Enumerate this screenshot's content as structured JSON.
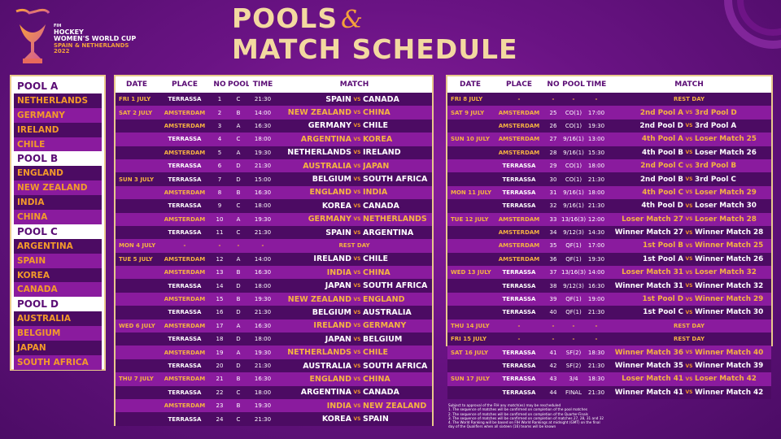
{
  "logo": {
    "line1": "FIH",
    "line2": "HOCKEY",
    "line3": "WOMEN'S WORLD CUP",
    "line4": "SPAIN & NETHERLANDS 2022"
  },
  "title": {
    "line1": "POOLS",
    "amp": "&",
    "line2": "MATCH SCHEDULE"
  },
  "pools": [
    {
      "name": "POOL A",
      "teams": [
        "NETHERLANDS",
        "GERMANY",
        "IRELAND",
        "CHILE"
      ]
    },
    {
      "name": "POOL B",
      "teams": [
        "ENGLAND",
        "NEW ZEALAND",
        "INDIA",
        "CHINA"
      ]
    },
    {
      "name": "POOL C",
      "teams": [
        "ARGENTINA",
        "SPAIN",
        "KOREA",
        "CANADA"
      ]
    },
    {
      "name": "POOL D",
      "teams": [
        "AUSTRALIA",
        "BELGIUM",
        "JAPAN",
        "SOUTH AFRICA"
      ]
    }
  ],
  "headers": {
    "date": "DATE",
    "place": "PLACE",
    "no": "NO",
    "pool": "POOL",
    "time": "TIME",
    "match": "MATCH"
  },
  "vs": "VS",
  "left_rows": [
    {
      "date": "FRI 1 JULY",
      "place": "TERRASSA",
      "no": "1",
      "pool": "C",
      "time": "21:30",
      "home": "SPAIN",
      "away": "CANADA"
    },
    {
      "date": "SAT 2 JULY",
      "place": "AMSTERDAM",
      "no": "2",
      "pool": "B",
      "time": "14:00",
      "home": "NEW ZEALAND",
      "away": "CHINA"
    },
    {
      "date": "",
      "place": "AMSTERDAM",
      "no": "3",
      "pool": "A",
      "time": "16:30",
      "home": "GERMANY",
      "away": "CHILE"
    },
    {
      "date": "",
      "place": "TERRASSA",
      "no": "4",
      "pool": "C",
      "time": "18:00",
      "home": "ARGENTINA",
      "away": "KOREA"
    },
    {
      "date": "",
      "place": "AMSTERDAM",
      "no": "5",
      "pool": "A",
      "time": "19:30",
      "home": "NETHERLANDS",
      "away": "IRELAND"
    },
    {
      "date": "",
      "place": "TERRASSA",
      "no": "6",
      "pool": "D",
      "time": "21:30",
      "home": "AUSTRALIA",
      "away": "JAPAN"
    },
    {
      "date": "SUN 3 JULY",
      "place": "TERRASSA",
      "no": "7",
      "pool": "D",
      "time": "15:00",
      "home": "BELGIUM",
      "away": "SOUTH AFRICA"
    },
    {
      "date": "",
      "place": "AMSTERDAM",
      "no": "8",
      "pool": "B",
      "time": "16:30",
      "home": "ENGLAND",
      "away": "INDIA"
    },
    {
      "date": "",
      "place": "TERRASSA",
      "no": "9",
      "pool": "C",
      "time": "18:00",
      "home": "KOREA",
      "away": "CANADA"
    },
    {
      "date": "",
      "place": "AMSTERDAM",
      "no": "10",
      "pool": "A",
      "time": "19:30",
      "home": "GERMANY",
      "away": "NETHERLANDS"
    },
    {
      "date": "",
      "place": "TERRASSA",
      "no": "11",
      "pool": "C",
      "time": "21:30",
      "home": "SPAIN",
      "away": "ARGENTINA"
    },
    {
      "date": "MON 4 JULY",
      "rest": true,
      "place": "-",
      "no": "-",
      "pool": "-",
      "time": "-",
      "rest_label": "REST DAY"
    },
    {
      "date": "TUE 5 JULY",
      "place": "AMSTERDAM",
      "no": "12",
      "pool": "A",
      "time": "14:00",
      "home": "IRELAND",
      "away": "CHILE"
    },
    {
      "date": "",
      "place": "AMSTERDAM",
      "no": "13",
      "pool": "B",
      "time": "16:30",
      "home": "INDIA",
      "away": "CHINA"
    },
    {
      "date": "",
      "place": "TERRASSA",
      "no": "14",
      "pool": "D",
      "time": "18:00",
      "home": "JAPAN",
      "away": "SOUTH AFRICA"
    },
    {
      "date": "",
      "place": "AMSTERDAM",
      "no": "15",
      "pool": "B",
      "time": "19:30",
      "home": "NEW ZEALAND",
      "away": "ENGLAND"
    },
    {
      "date": "",
      "place": "TERRASSA",
      "no": "16",
      "pool": "D",
      "time": "21:30",
      "home": "BELGIUM",
      "away": "AUSTRALIA"
    },
    {
      "date": "WED 6 JULY",
      "place": "AMSTERDAM",
      "no": "17",
      "pool": "A",
      "time": "16:30",
      "home": "IRELAND",
      "away": "GERMANY"
    },
    {
      "date": "",
      "place": "TERRASSA",
      "no": "18",
      "pool": "D",
      "time": "18:00",
      "home": "JAPAN",
      "away": "BELGIUM"
    },
    {
      "date": "",
      "place": "AMSTERDAM",
      "no": "19",
      "pool": "A",
      "time": "19:30",
      "home": "NETHERLANDS",
      "away": "CHILE"
    },
    {
      "date": "",
      "place": "TERRASSA",
      "no": "20",
      "pool": "D",
      "time": "21:30",
      "home": "AUSTRALIA",
      "away": "SOUTH AFRICA"
    },
    {
      "date": "THU 7 JULY",
      "place": "AMSTERDAM",
      "no": "21",
      "pool": "B",
      "time": "16:30",
      "home": "ENGLAND",
      "away": "CHINA"
    },
    {
      "date": "",
      "place": "TERRASSA",
      "no": "22",
      "pool": "C",
      "time": "18:00",
      "home": "ARGENTINA",
      "away": "CANADA"
    },
    {
      "date": "",
      "place": "AMSTERDAM",
      "no": "23",
      "pool": "B",
      "time": "19:30",
      "home": "INDIA",
      "away": "NEW ZEALAND"
    },
    {
      "date": "",
      "place": "TERRASSA",
      "no": "24",
      "pool": "C",
      "time": "21:30",
      "home": "KOREA",
      "away": "SPAIN"
    }
  ],
  "right_rows": [
    {
      "date": "FRI 8 JULY",
      "rest": true,
      "place": "-",
      "no": "-",
      "pool": "-",
      "time": "-",
      "rest_label": "REST DAY"
    },
    {
      "date": "SAT 9 JULY",
      "place": "AMSTERDAM",
      "no": "25",
      "pool": "CO(1)",
      "time": "17:00",
      "home": "2nd Pool A",
      "away": "3rd Pool D"
    },
    {
      "date": "",
      "place": "AMSTERDAM",
      "no": "26",
      "pool": "CO(1)",
      "time": "19:30",
      "home": "2nd Pool D",
      "away": "3rd Pool A"
    },
    {
      "date": "SUN 10 JULY",
      "place": "AMSTERDAM",
      "no": "27",
      "pool": "9/16(1)",
      "time": "13:00",
      "home": "4th Pool A",
      "away": "Loser Match 25"
    },
    {
      "date": "",
      "place": "AMSTERDAM",
      "no": "28",
      "pool": "9/16(1)",
      "time": "15:30",
      "home": "4th Pool B",
      "away": "Loser Match 26"
    },
    {
      "date": "",
      "place": "TERRASSA",
      "no": "29",
      "pool": "CO(1)",
      "time": "18:00",
      "home": "2nd Pool C",
      "away": "3rd Pool B"
    },
    {
      "date": "",
      "place": "TERRASSA",
      "no": "30",
      "pool": "CO(1)",
      "time": "21:30",
      "home": "2nd Pool B",
      "away": "3rd Pool C"
    },
    {
      "date": "MON 11 JULY",
      "place": "TERRASSA",
      "no": "31",
      "pool": "9/16(1)",
      "time": "18:00",
      "home": "4th Pool C",
      "away": "Loser Match 29"
    },
    {
      "date": "",
      "place": "TERRASSA",
      "no": "32",
      "pool": "9/16(1)",
      "time": "21:30",
      "home": "4th Pool D",
      "away": "Loser Match 30"
    },
    {
      "date": "TUE 12 JULY",
      "place": "AMSTERDAM",
      "no": "33",
      "pool": "13/16(3)",
      "time": "12:00",
      "home": "Loser Match 27",
      "away": "Loser Match 28"
    },
    {
      "date": "",
      "place": "AMSTERDAM",
      "no": "34",
      "pool": "9/12(3)",
      "time": "14:30",
      "home": "Winner Match 27",
      "away": "Winner Match 28"
    },
    {
      "date": "",
      "place": "AMSTERDAM",
      "no": "35",
      "pool": "QF(1)",
      "time": "17:00",
      "home": "1st Pool B",
      "away": "Winner Match 25"
    },
    {
      "date": "",
      "place": "AMSTERDAM",
      "no": "36",
      "pool": "QF(1)",
      "time": "19:30",
      "home": "1st Pool A",
      "away": "Winner Match 26"
    },
    {
      "date": "WED 13 JULY",
      "place": "TERRASSA",
      "no": "37",
      "pool": "13/16(3)",
      "time": "14:00",
      "home": "Loser Match 31",
      "away": "Loser Match 32"
    },
    {
      "date": "",
      "place": "TERRASSA",
      "no": "38",
      "pool": "9/12(3)",
      "time": "16:30",
      "home": "Winner Match 31",
      "away": "Winner Match 32"
    },
    {
      "date": "",
      "place": "TERRASSA",
      "no": "39",
      "pool": "QF(1)",
      "time": "19:00",
      "home": "1st Pool D",
      "away": "Winner Match 29"
    },
    {
      "date": "",
      "place": "TERRASSA",
      "no": "40",
      "pool": "QF(1)",
      "time": "21:30",
      "home": "1st Pool C",
      "away": "Winner Match 30"
    },
    {
      "date": "THU 14 JULY",
      "rest": true,
      "place": "-",
      "no": "-",
      "pool": "-",
      "time": "-",
      "rest_label": "REST DAY"
    },
    {
      "date": "FRI 15 JULY",
      "rest": true,
      "place": "-",
      "no": "-",
      "pool": "-",
      "time": "-",
      "rest_label": "REST DAY"
    },
    {
      "date": "SAT 16 JULY",
      "place": "TERRASSA",
      "no": "41",
      "pool": "SF(2)",
      "time": "18:30",
      "home": "Winner Match 36",
      "away": "Winner Match 40"
    },
    {
      "date": "",
      "place": "TERRASSA",
      "no": "42",
      "pool": "SF(2)",
      "time": "21:30",
      "home": "Winner Match 35",
      "away": "Winner Match 39"
    },
    {
      "date": "SUN 17 JULY",
      "place": "TERRASSA",
      "no": "43",
      "pool": "3/4",
      "time": "18:30",
      "home": "Loser Match 41",
      "away": "Loser Match 42"
    },
    {
      "date": "",
      "place": "TERRASSA",
      "no": "44",
      "pool": "FINAL",
      "time": "21:30",
      "home": "Winner Match 41",
      "away": "Winner Match 42"
    }
  ],
  "notes": [
    "Subject to approval of the FIH any match(es) may be rescheduled",
    "1. The sequence of matches will be confirmed on completion of the pool matches",
    "2. The sequence of matches will be confirmed on completion of the Quarter-Finals",
    "3. The sequence of matches will be confirmed on completion of matches 27, 28, 31 and 32",
    "4. The World Ranking will be based on FIH World Rankings at midnight (GMT) on the final",
    "   day of the Qualifiers when all sixteen (16) teams will be known"
  ],
  "colors": {
    "purple_dark": "#4c0b63",
    "purple_light": "#8a1b9e",
    "gold": "#f5b341",
    "frame": "#e9c98c"
  }
}
